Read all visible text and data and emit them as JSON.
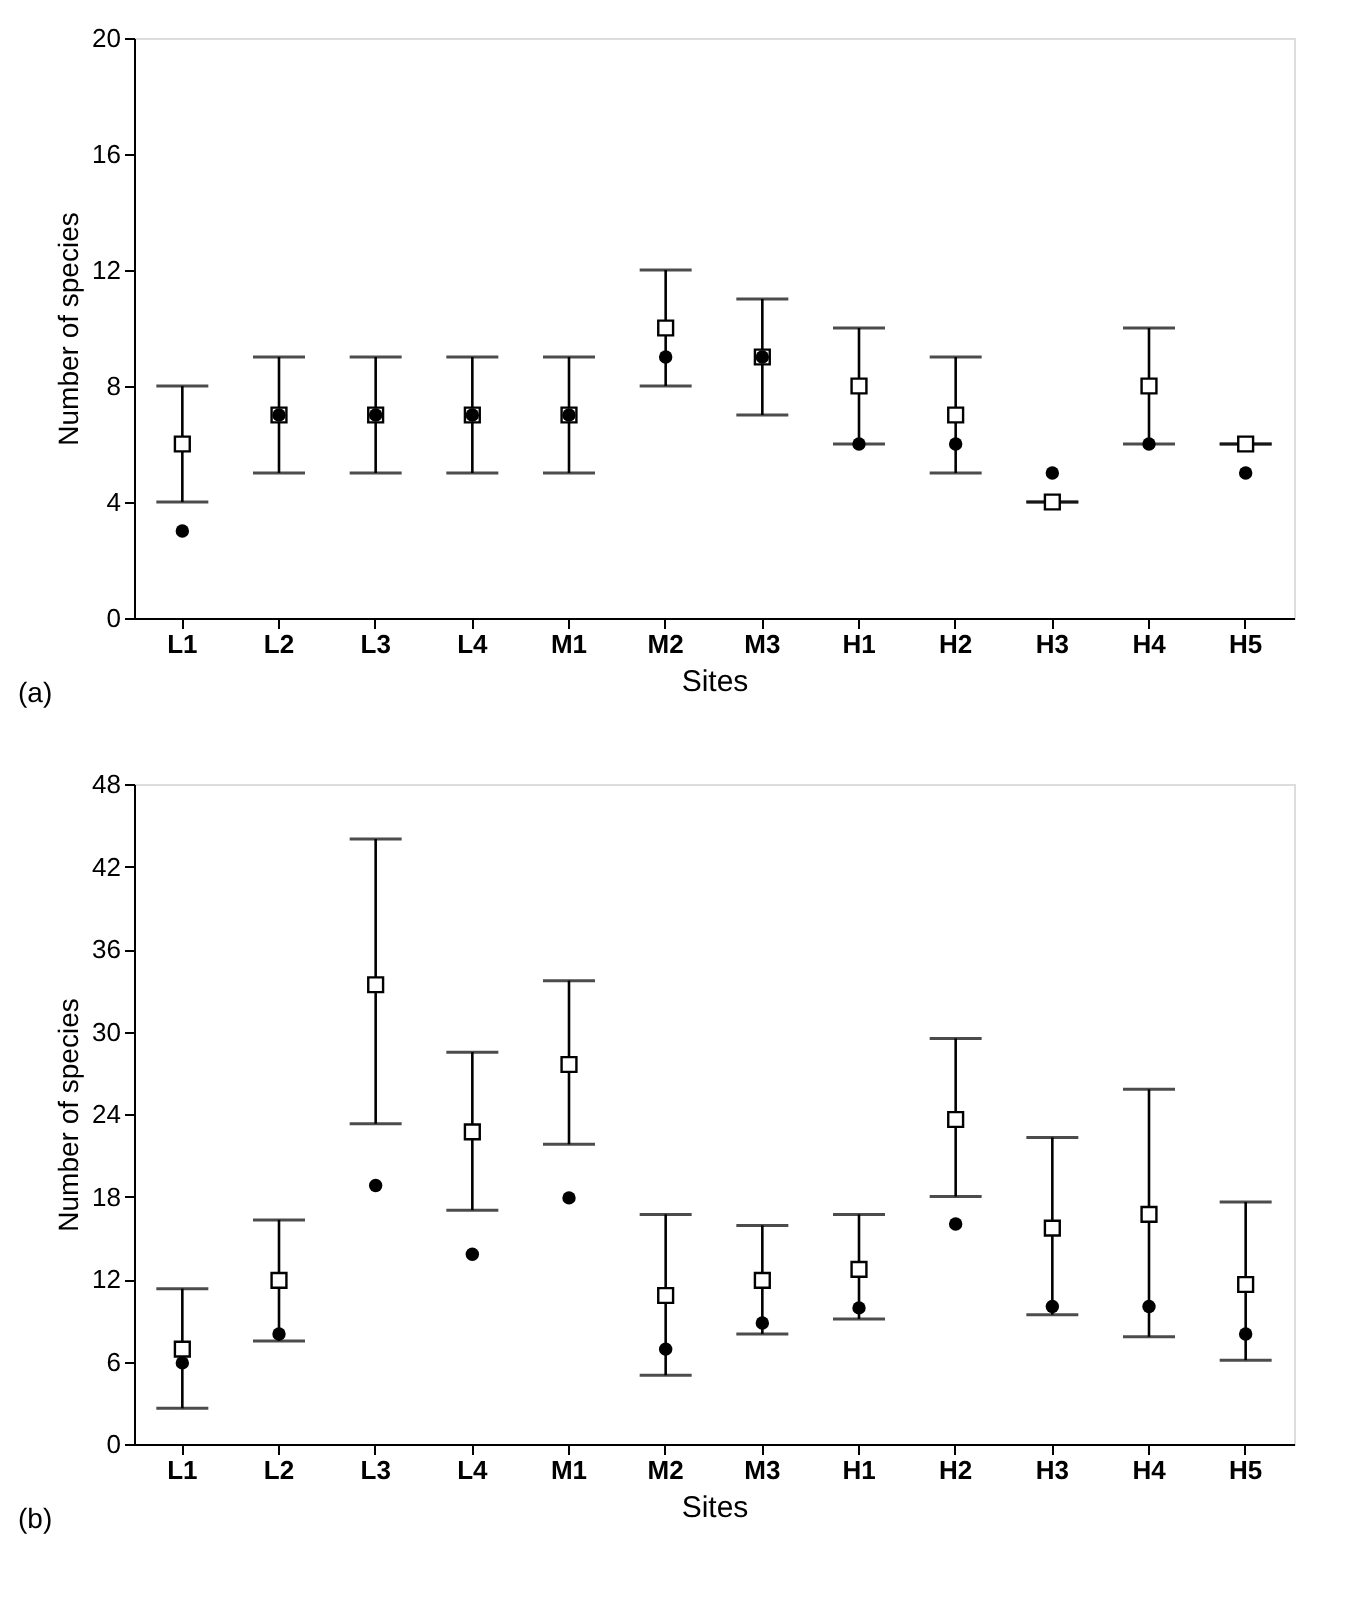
{
  "chart_data": [
    {
      "type": "scatter",
      "categories": [
        "L1",
        "L2",
        "L3",
        "L4",
        "M1",
        "M2",
        "M3",
        "H1",
        "H2",
        "H3",
        "H4",
        "H5"
      ],
      "xlabel": "Sites",
      "ylabel": "Number of species",
      "ylim": [
        0,
        20
      ],
      "yticks": [
        0,
        4,
        8,
        12,
        16,
        20
      ],
      "grid": false,
      "annotations": [
        "(a)"
      ],
      "series": [
        {
          "marker": "square",
          "color": "#000000",
          "values": [
            6,
            7,
            7,
            7,
            7,
            10,
            9,
            8,
            7,
            4,
            8,
            6
          ],
          "errors": [
            [
              4,
              8
            ],
            [
              5,
              9
            ],
            [
              5,
              9
            ],
            [
              5,
              9
            ],
            [
              5,
              9
            ],
            [
              8,
              12
            ],
            [
              7,
              11
            ],
            [
              6,
              10
            ],
            [
              5,
              9
            ],
            [
              4,
              4
            ],
            [
              6,
              10
            ],
            [
              6,
              6
            ]
          ]
        },
        {
          "marker": "circle",
          "color": "#000000",
          "values": [
            3,
            7,
            7,
            7,
            7,
            9,
            9,
            6,
            6,
            5,
            6,
            5
          ]
        }
      ]
    },
    {
      "type": "scatter",
      "categories": [
        "L1",
        "L2",
        "L3",
        "L4",
        "M1",
        "M2",
        "M3",
        "H1",
        "H2",
        "H3",
        "H4",
        "H5"
      ],
      "xlabel": "Sites",
      "ylabel": "Number of species",
      "ylim": [
        0,
        48
      ],
      "yticks": [
        0,
        6,
        12,
        18,
        24,
        30,
        36,
        42,
        48
      ],
      "grid": false,
      "annotations": [
        "(b)"
      ],
      "series": [
        {
          "marker": "square",
          "color": "#000000",
          "values": [
            6.9,
            11.9,
            33.4,
            22.7,
            27.6,
            10.8,
            11.9,
            12.7,
            23.6,
            15.7,
            16.7,
            11.6
          ],
          "errors": [
            [
              2.6,
              11.3
            ],
            [
              7.5,
              16.3
            ],
            [
              23.3,
              44
            ],
            [
              17,
              28.5
            ],
            [
              21.8,
              33.7
            ],
            [
              5,
              16.7
            ],
            [
              8,
              15.9
            ],
            [
              9.1,
              16.7
            ],
            [
              18,
              29.5
            ],
            [
              9.4,
              22.3
            ],
            [
              7.8,
              25.8
            ],
            [
              6.1,
              17.6
            ]
          ]
        },
        {
          "marker": "circle",
          "color": "#000000",
          "values": [
            5.9,
            8,
            18.8,
            13.8,
            17.9,
            6.9,
            8.8,
            9.9,
            16,
            10,
            10,
            8
          ]
        }
      ]
    }
  ]
}
